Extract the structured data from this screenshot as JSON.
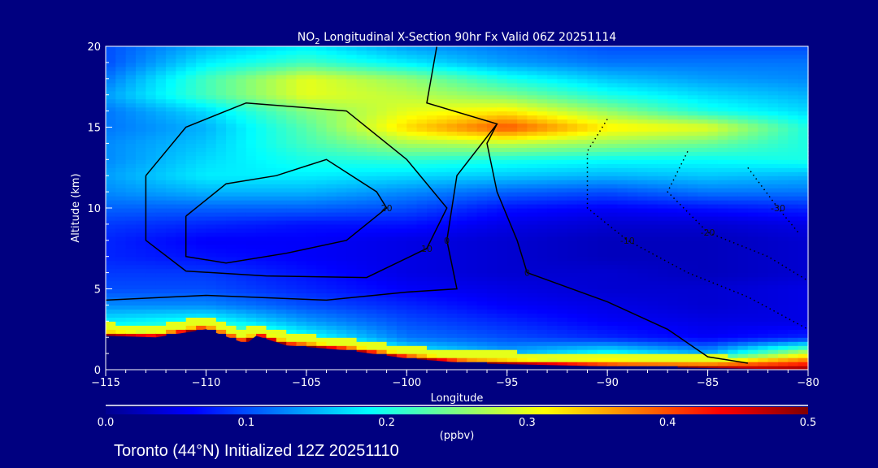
{
  "chart_data": {
    "type": "heatmap",
    "title": "NO2 Longitudinal X-Section 90hr  Fx Valid 06Z 20251114",
    "title_parts": {
      "pre": "NO",
      "sub": "2",
      "post": " Longitudinal X-Section 90hr  Fx Valid 06Z 20251114"
    },
    "xlabel": "Longitude",
    "ylabel": "Altitude (km)",
    "xlim": [
      -115,
      -80
    ],
    "ylim": [
      0,
      20
    ],
    "x_ticks": [
      "-115",
      "-110",
      "-105",
      "-100",
      "-95",
      "-90",
      "-85",
      "-80"
    ],
    "y_ticks": [
      "0",
      "5",
      "10",
      "15",
      "20"
    ],
    "colorbar": {
      "label": "(ppbv)",
      "range": [
        0,
        0.5
      ],
      "ticks": [
        "0.0",
        "0.1",
        "0.2",
        "0.3",
        "0.4",
        "0.5"
      ],
      "colormap": "jet"
    },
    "grid_lon": [
      -115,
      -110,
      -105,
      -100,
      -95,
      -90,
      -85,
      -80
    ],
    "grid_alt": [
      0,
      1,
      2,
      3,
      4,
      5,
      6,
      7,
      8,
      9,
      10,
      11,
      12,
      13,
      14,
      15,
      16,
      17,
      18,
      19,
      20
    ],
    "values": [
      [
        0.45,
        0.45,
        0.45,
        0.4,
        0.5,
        0.5,
        0.5,
        0.5
      ],
      [
        0.25,
        0.3,
        0.35,
        0.2,
        0.15,
        0.2,
        0.15,
        0.3
      ],
      [
        0.22,
        0.3,
        0.2,
        0.12,
        0.1,
        0.08,
        0.06,
        0.08
      ],
      [
        0.18,
        0.2,
        0.14,
        0.1,
        0.08,
        0.06,
        0.05,
        0.05
      ],
      [
        0.13,
        0.13,
        0.1,
        0.08,
        0.06,
        0.05,
        0.04,
        0.05
      ],
      [
        0.1,
        0.1,
        0.08,
        0.06,
        0.05,
        0.04,
        0.04,
        0.05
      ],
      [
        0.09,
        0.09,
        0.07,
        0.05,
        0.04,
        0.04,
        0.03,
        0.04
      ],
      [
        0.08,
        0.07,
        0.06,
        0.05,
        0.04,
        0.03,
        0.03,
        0.04
      ],
      [
        0.08,
        0.06,
        0.06,
        0.05,
        0.04,
        0.03,
        0.03,
        0.04
      ],
      [
        0.09,
        0.08,
        0.07,
        0.07,
        0.05,
        0.04,
        0.04,
        0.05
      ],
      [
        0.11,
        0.11,
        0.11,
        0.1,
        0.07,
        0.06,
        0.07,
        0.08
      ],
      [
        0.13,
        0.15,
        0.15,
        0.13,
        0.11,
        0.1,
        0.12,
        0.12
      ],
      [
        0.14,
        0.18,
        0.18,
        0.17,
        0.16,
        0.15,
        0.16,
        0.15
      ],
      [
        0.13,
        0.17,
        0.2,
        0.21,
        0.2,
        0.19,
        0.19,
        0.2
      ],
      [
        0.13,
        0.16,
        0.22,
        0.27,
        0.28,
        0.26,
        0.24,
        0.2
      ],
      [
        0.12,
        0.15,
        0.23,
        0.33,
        0.4,
        0.32,
        0.3,
        0.2
      ],
      [
        0.12,
        0.17,
        0.25,
        0.3,
        0.32,
        0.26,
        0.2,
        0.17
      ],
      [
        0.14,
        0.22,
        0.3,
        0.28,
        0.25,
        0.2,
        0.17,
        0.15
      ],
      [
        0.12,
        0.22,
        0.3,
        0.26,
        0.2,
        0.16,
        0.14,
        0.13
      ],
      [
        0.1,
        0.18,
        0.22,
        0.18,
        0.14,
        0.12,
        0.12,
        0.12
      ],
      [
        0.1,
        0.15,
        0.18,
        0.14,
        0.12,
        0.1,
        0.1,
        0.1
      ]
    ],
    "terrain": {
      "lon": [
        -115,
        -112.5,
        -110,
        -108,
        -107.5,
        -106,
        -105,
        -103,
        -100,
        -97,
        -90,
        -85,
        -80
      ],
      "alt": [
        2.1,
        2.0,
        2.5,
        1.6,
        2.1,
        1.5,
        1.4,
        1.2,
        0.7,
        0.4,
        0.2,
        0.1,
        0.0
      ]
    },
    "contours": [
      {
        "label": "20",
        "style": "solid",
        "points": [
          [
            -111,
            9.5
          ],
          [
            -109,
            11.5
          ],
          [
            -106.5,
            12
          ],
          [
            -104,
            13
          ],
          [
            -101.5,
            11
          ],
          [
            -101,
            10
          ],
          [
            -103,
            8
          ],
          [
            -106,
            7.2
          ],
          [
            -109,
            6.6
          ],
          [
            -111,
            7
          ],
          [
            -111,
            9.5
          ]
        ]
      },
      {
        "label": "10",
        "style": "solid",
        "points": [
          [
            -113,
            12
          ],
          [
            -111,
            15
          ],
          [
            -108,
            16.5
          ],
          [
            -103,
            16
          ],
          [
            -100,
            13
          ],
          [
            -98,
            10
          ],
          [
            -99,
            7.5
          ],
          [
            -102,
            5.7
          ],
          [
            -107,
            5.8
          ],
          [
            -111,
            6.1
          ],
          [
            -113,
            8
          ],
          [
            -113,
            12
          ]
        ]
      },
      {
        "label": "0",
        "style": "solid",
        "points": [
          [
            -115,
            4.3
          ],
          [
            -110,
            4.6
          ],
          [
            -104,
            4.3
          ],
          [
            -100,
            4.8
          ],
          [
            -97.5,
            5
          ],
          [
            -98,
            8
          ],
          [
            -97.5,
            12
          ],
          [
            -95.5,
            15.2
          ],
          [
            -99,
            16.5
          ],
          [
            -98.5,
            20
          ]
        ]
      },
      {
        "label": "0",
        "style": "solid",
        "points": [
          [
            -95.5,
            15.2
          ],
          [
            -96,
            14
          ],
          [
            -95.5,
            11
          ],
          [
            -94.5,
            8
          ],
          [
            -94,
            6
          ],
          [
            -90,
            4.2
          ],
          [
            -87,
            2.5
          ],
          [
            -85,
            0.8
          ],
          [
            -83,
            0.4
          ]
        ]
      },
      {
        "label": "-10",
        "style": "dotted",
        "points": [
          [
            -90,
            15.5
          ],
          [
            -91,
            13.5
          ],
          [
            -91,
            10
          ],
          [
            -89,
            8
          ],
          [
            -86,
            6
          ],
          [
            -83,
            4.5
          ],
          [
            -80,
            2.5
          ]
        ]
      },
      {
        "label": "-20",
        "style": "dotted",
        "points": [
          [
            -86,
            13.5
          ],
          [
            -87,
            11
          ],
          [
            -85,
            8.5
          ],
          [
            -82,
            7
          ],
          [
            -80,
            5.5
          ]
        ]
      },
      {
        "label": "-30",
        "style": "dotted",
        "points": [
          [
            -83,
            12.5
          ],
          [
            -81.5,
            10
          ],
          [
            -80.5,
            8.5
          ]
        ]
      }
    ],
    "footer": "Toronto (44°N) Initialized 12Z 20251110"
  }
}
